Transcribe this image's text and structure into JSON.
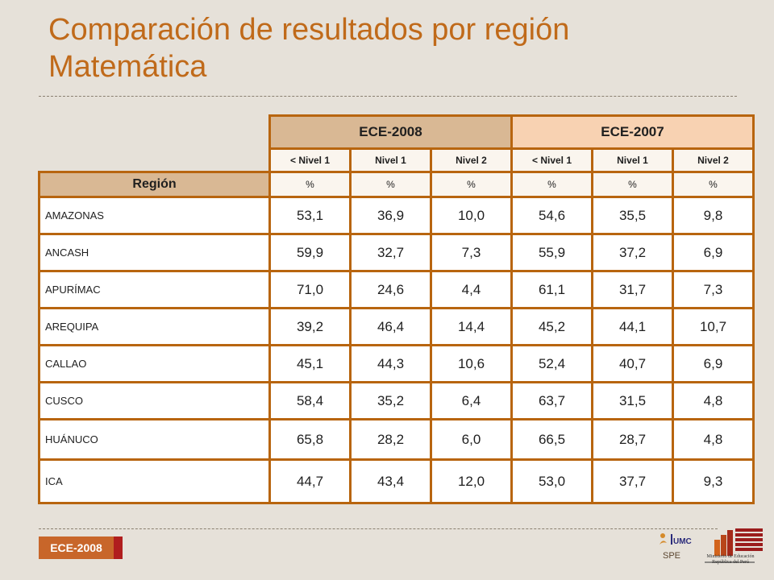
{
  "title": {
    "line1": "Comparación de resultados por región",
    "line2": "Matemática"
  },
  "table": {
    "groups": [
      "ECE-2008",
      "ECE-2007"
    ],
    "levels": [
      "< Nivel 1",
      "Nivel 1",
      "Nivel 2",
      "< Nivel 1",
      "Nivel 1",
      "Nivel 2"
    ],
    "region_header": "Región",
    "units": [
      "%",
      "%",
      "%",
      "%",
      "%",
      "%"
    ],
    "rows": [
      {
        "region": "AMAZONAS",
        "values": [
          "53,1",
          "36,9",
          "10,0",
          "54,6",
          "35,5",
          "9,8"
        ]
      },
      {
        "region": "ANCASH",
        "values": [
          "59,9",
          "32,7",
          "7,3",
          "55,9",
          "37,2",
          "6,9"
        ]
      },
      {
        "region": "APURÍMAC",
        "values": [
          "71,0",
          "24,6",
          "4,4",
          "61,1",
          "31,7",
          "7,3"
        ]
      },
      {
        "region": "AREQUIPA",
        "values": [
          "39,2",
          "46,4",
          "14,4",
          "45,2",
          "44,1",
          "10,7"
        ]
      },
      {
        "region": "CALLAO",
        "values": [
          "45,1",
          "44,3",
          "10,6",
          "52,4",
          "40,7",
          "6,9"
        ]
      },
      {
        "region": "CUSCO",
        "values": [
          "58,4",
          "35,2",
          "6,4",
          "63,7",
          "31,5",
          "4,8"
        ]
      },
      {
        "region": "HUÁNUCO",
        "values": [
          "65,8",
          "28,2",
          "6,0",
          "66,5",
          "28,7",
          "4,8"
        ]
      },
      {
        "region": "ICA",
        "values": [
          "44,7",
          "43,4",
          "12,0",
          "53,0",
          "37,7",
          "9,3"
        ]
      }
    ]
  },
  "footer": {
    "badge": "ECE-2008",
    "spe_label": "SPE",
    "ministerio_line1": "Ministerio de Educación",
    "ministerio_line2": "República del Perú"
  },
  "colors": {
    "title": "#c06a1a",
    "table_border": "#b8650f",
    "header_2008": "#d9b894",
    "header_2007": "#f8d2b2",
    "badge": "#c8662a"
  }
}
